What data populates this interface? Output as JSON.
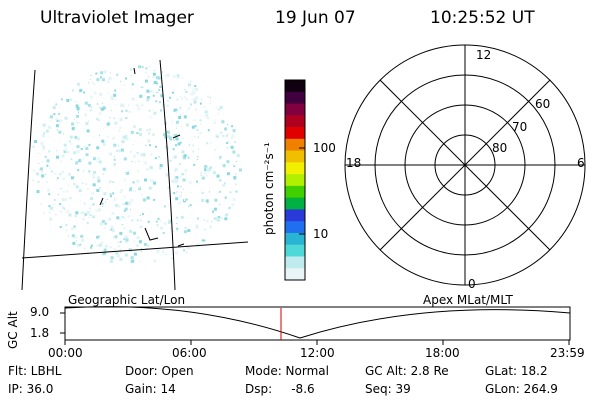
{
  "header": {
    "title": "Ultraviolet Imager",
    "date": "19 Jun 07",
    "time": "10:25:52 UT"
  },
  "colorbar": {
    "unit_label": "photon cm⁻²s⁻¹",
    "ticks": [
      "100",
      "10"
    ],
    "colors": [
      "#e8f4f6",
      "#bfeaee",
      "#4fd8d8",
      "#2ab4d4",
      "#1f6ff0",
      "#2a3ad8",
      "#00b040",
      "#40d000",
      "#b0f000",
      "#f0f000",
      "#f0c000",
      "#f08000",
      "#e00000",
      "#b00020",
      "#800040",
      "#400040",
      "#100010"
    ]
  },
  "polar_plot": {
    "lat_labels": [
      "80",
      "70",
      "60"
    ],
    "mlt_labels": {
      "top": "12",
      "bottom": "0",
      "left": "18",
      "right": "6"
    }
  },
  "timeline": {
    "y_axis_label": "GC Alt",
    "y_ticks": [
      "9.0",
      "1.8"
    ],
    "left_caption": "Geographic Lat/Lon",
    "right_caption": "Apex  MLat/MLT",
    "x_ticks": [
      "00:00",
      "06:00",
      "12:00",
      "18:00",
      "23:59"
    ],
    "marker_color": "#d00000"
  },
  "status": {
    "row1": {
      "flt": "Flt: LBHL",
      "door": "Door: Open",
      "mode": "Mode: Normal",
      "gc_alt": "GC Alt: 2.8 Re",
      "glat": "GLat:  18.2"
    },
    "row2": {
      "ip": "IP: 36.0",
      "gain": "Gain: 14",
      "dsp": "Dsp:     -8.6",
      "seq": "Seq: 39",
      "glon": "GLon: 264.9"
    }
  }
}
